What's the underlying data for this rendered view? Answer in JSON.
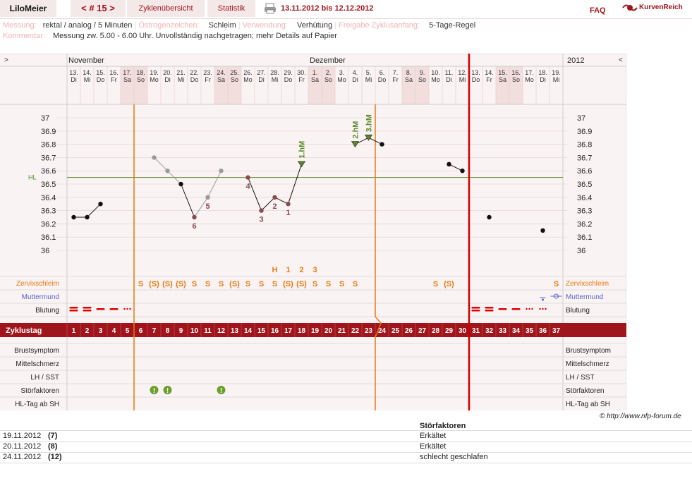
{
  "header": {
    "user": "LiloMeier",
    "cycle": "< # 15 >",
    "tabs": [
      "Zyklenübersicht",
      "Statistik"
    ],
    "date_range": "13.11.2012 bis 12.12.2012",
    "faq": "FAQ",
    "brand": "KurvenReich"
  },
  "info": {
    "messung_label": "Messung:",
    "messung": "rektal / analog / 5 Minuten",
    "oestrogen_label": "Östrogenzeichen:",
    "oestrogen": "Schleim",
    "verwendung_label": "Verwendung:",
    "verwendung": "Verhütung",
    "freigabe_label": "Freigabe Zyklusanfang:",
    "freigabe": "5-Tage-Regel",
    "kommentar_label": "Kommentar:",
    "kommentar": "Messung zw. 5.00 - 6.00 Uhr. Unvollständig nachgetragen; mehr Details auf Papier"
  },
  "chart": {
    "left_arrow": ">",
    "right_arrow": "<",
    "year": "2012",
    "month_labels": [
      {
        "text": "November",
        "col": 0
      },
      {
        "text": "Dezember",
        "col": 18
      }
    ],
    "days": [
      {
        "d": "13.",
        "w": "Di"
      },
      {
        "d": "14.",
        "w": "Mi"
      },
      {
        "d": "15.",
        "w": "Do"
      },
      {
        "d": "16.",
        "w": "Fr"
      },
      {
        "d": "17.",
        "w": "Sa"
      },
      {
        "d": "18.",
        "w": "So"
      },
      {
        "d": "19.",
        "w": "Mo"
      },
      {
        "d": "20.",
        "w": "Di"
      },
      {
        "d": "21.",
        "w": "Mi"
      },
      {
        "d": "22.",
        "w": "Do"
      },
      {
        "d": "23.",
        "w": "Fr"
      },
      {
        "d": "24.",
        "w": "Sa"
      },
      {
        "d": "25.",
        "w": "So"
      },
      {
        "d": "26.",
        "w": "Mo"
      },
      {
        "d": "27.",
        "w": "Di"
      },
      {
        "d": "28.",
        "w": "Mi"
      },
      {
        "d": "29.",
        "w": "Do"
      },
      {
        "d": "30.",
        "w": "Fr"
      },
      {
        "d": "1.",
        "w": "Sa"
      },
      {
        "d": "2.",
        "w": "So"
      },
      {
        "d": "3.",
        "w": "Mo"
      },
      {
        "d": "4.",
        "w": "Di"
      },
      {
        "d": "5.",
        "w": "Mi"
      },
      {
        "d": "6.",
        "w": "Do"
      },
      {
        "d": "7.",
        "w": "Fr"
      },
      {
        "d": "8.",
        "w": "Sa"
      },
      {
        "d": "9.",
        "w": "So"
      },
      {
        "d": "10.",
        "w": "Mo"
      },
      {
        "d": "11.",
        "w": "Di"
      },
      {
        "d": "12.",
        "w": "Mi"
      },
      {
        "d": "13.",
        "w": "Do"
      },
      {
        "d": "14.",
        "w": "Fr"
      },
      {
        "d": "15.",
        "w": "Sa"
      },
      {
        "d": "16.",
        "w": "So"
      },
      {
        "d": "17.",
        "w": "Mo"
      },
      {
        "d": "18.",
        "w": "Di"
      },
      {
        "d": "19.",
        "w": "Mi"
      }
    ],
    "y_ticks": [
      "37",
      "36.9",
      "36.8",
      "36.7",
      "36.6",
      "36.5",
      "36.4",
      "36.3",
      "36.2",
      "36.1",
      "36"
    ],
    "hl_label": "HL",
    "hl_value": 36.55,
    "temps": [
      36.25,
      36.25,
      36.35,
      null,
      null,
      null,
      36.7,
      36.6,
      36.5,
      36.25,
      36.4,
      36.6,
      null,
      36.55,
      36.3,
      36.4,
      36.35,
      36.65,
      null,
      null,
      null,
      36.8,
      36.85,
      36.8,
      null,
      null,
      null,
      null,
      36.65,
      36.6,
      null,
      36.25,
      null,
      null,
      null,
      36.15,
      null
    ],
    "excluded": [
      6,
      7,
      10,
      11
    ],
    "count_labels": [
      {
        "col": 9,
        "text": "6"
      },
      {
        "col": 10,
        "text": "5"
      },
      {
        "col": 13,
        "text": "4"
      },
      {
        "col": 14,
        "text": "3"
      },
      {
        "col": 15,
        "text": "2"
      },
      {
        "col": 16,
        "text": "1"
      }
    ],
    "hm_labels": [
      {
        "col": 17,
        "text": "1.hM"
      },
      {
        "col": 21,
        "text": "2.hM"
      },
      {
        "col": 22,
        "text": "3.hM"
      }
    ],
    "mucus_top": [
      {
        "col": 15,
        "text": "H"
      },
      {
        "col": 16,
        "text": "1"
      },
      {
        "col": 17,
        "text": "2"
      },
      {
        "col": 18,
        "text": "3"
      }
    ],
    "mucus": [
      "",
      "",
      "",
      "",
      "",
      "S",
      "(S)",
      "(S)",
      "(S)",
      "S",
      "S",
      "S",
      "(S)",
      "S",
      "S",
      "S",
      "(S)",
      "(S)",
      "S",
      "S",
      "S",
      "S",
      "",
      "",
      "",
      "",
      "",
      "S",
      "(S)",
      "",
      "",
      "",
      "",
      "",
      "",
      "",
      "S"
    ],
    "row_labels": [
      "Zervixschleim",
      "Muttermund",
      "Blutung"
    ],
    "cycle_label": "Zyklustag",
    "cycle_days": [
      "1",
      "2",
      "3",
      "4",
      "5",
      "6",
      "7",
      "8",
      "9",
      "10",
      "11",
      "12",
      "13",
      "14",
      "15",
      "16",
      "17",
      "18",
      "19",
      "20",
      "21",
      "22",
      "23",
      "24",
      "25",
      "26",
      "27",
      "28",
      "29",
      "30",
      "31",
      "32",
      "33",
      "34",
      "35",
      "36",
      "37"
    ],
    "bottom_labels": [
      "Brustsymptom",
      "Mittelschmerz",
      "LH / SST",
      "Störfaktoren",
      "HL-Tag ab SH"
    ],
    "disturb_cols": [
      6,
      7,
      11
    ],
    "copyright": "© http://www.nfp-forum.de",
    "colors": {
      "accent": "#a0151c",
      "orange": "#e87a10",
      "green": "#5a8a2a",
      "blue": "#5566cc"
    }
  },
  "notes": {
    "header": "Störfaktoren",
    "rows": [
      {
        "date": "19.11.2012",
        "day": "(7)",
        "text": "Erkältet"
      },
      {
        "date": "20.11.2012",
        "day": "(8)",
        "text": "Erkältet"
      },
      {
        "date": "24.11.2012",
        "day": "(12)",
        "text": "schlecht geschlafen"
      }
    ]
  }
}
